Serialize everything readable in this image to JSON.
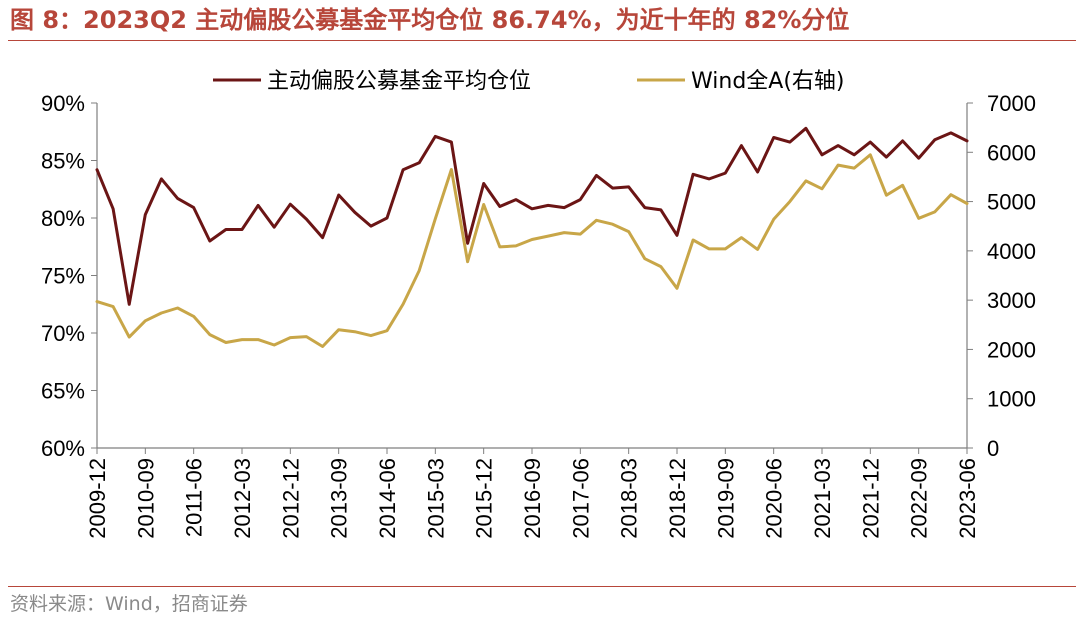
{
  "figure": {
    "title": "图 8：2023Q2 主动偏股公募基金平均仓位 86.74%，为近十年的 82%分位",
    "source": "资料来源：Wind，招商证券"
  },
  "colors": {
    "accent": "#b7463a",
    "series_position": "#6b1515",
    "series_index": "#c8a648",
    "axis": "#7f7f7f"
  },
  "chart_data": {
    "type": "line",
    "legend_placement": "top",
    "grid": false,
    "x": [
      "2009-12",
      "2010-03",
      "2010-06",
      "2010-09",
      "2010-12",
      "2011-03",
      "2011-06",
      "2011-09",
      "2011-12",
      "2012-03",
      "2012-06",
      "2012-09",
      "2012-12",
      "2013-03",
      "2013-06",
      "2013-09",
      "2013-12",
      "2014-03",
      "2014-06",
      "2014-09",
      "2014-12",
      "2015-03",
      "2015-06",
      "2015-09",
      "2015-12",
      "2016-03",
      "2016-06",
      "2016-09",
      "2016-12",
      "2017-03",
      "2017-06",
      "2017-09",
      "2017-12",
      "2018-03",
      "2018-06",
      "2018-09",
      "2018-12",
      "2019-03",
      "2019-06",
      "2019-09",
      "2019-12",
      "2020-03",
      "2020-06",
      "2020-09",
      "2020-12",
      "2021-03",
      "2021-06",
      "2021-09",
      "2021-12",
      "2022-03",
      "2022-06",
      "2022-09",
      "2022-12",
      "2023-03",
      "2023-06"
    ],
    "x_tick_labels": [
      "2009-12",
      "2010-09",
      "2011-06",
      "2012-03",
      "2012-12",
      "2013-09",
      "2014-06",
      "2015-03",
      "2015-12",
      "2016-09",
      "2017-06",
      "2018-03",
      "2018-12",
      "2019-09",
      "2020-06",
      "2021-03",
      "2021-12",
      "2022-09",
      "2023-06"
    ],
    "y_left": {
      "ylim": [
        60,
        90
      ],
      "ticks": [
        "90%",
        "85%",
        "80%",
        "75%",
        "70%",
        "65%",
        "60%"
      ]
    },
    "y_right": {
      "ylim": [
        0,
        7000
      ],
      "ticks": [
        "7000",
        "6000",
        "5000",
        "4000",
        "3000",
        "2000",
        "1000",
        "0"
      ]
    },
    "series": [
      {
        "name": "主动偏股公募基金平均仓位",
        "axis": "left",
        "values": [
          84.2,
          80.8,
          72.5,
          80.3,
          83.4,
          81.7,
          80.9,
          78.0,
          79.0,
          79.0,
          81.1,
          79.2,
          81.2,
          79.9,
          78.3,
          82.0,
          80.5,
          79.3,
          80.0,
          84.2,
          84.8,
          87.1,
          86.6,
          77.8,
          83.0,
          81.0,
          81.6,
          80.8,
          81.1,
          80.9,
          81.6,
          83.7,
          82.6,
          82.7,
          80.9,
          80.7,
          78.5,
          83.8,
          83.4,
          83.9,
          86.3,
          84.0,
          87.0,
          86.6,
          87.8,
          85.5,
          86.3,
          85.5,
          86.6,
          85.3,
          86.7,
          85.2,
          86.8,
          87.4,
          86.7
        ]
      },
      {
        "name": "Wind全A(右轴)",
        "axis": "right",
        "values": [
          2970,
          2870,
          2250,
          2580,
          2740,
          2840,
          2670,
          2300,
          2140,
          2200,
          2200,
          2090,
          2240,
          2260,
          2060,
          2400,
          2360,
          2280,
          2380,
          2920,
          3600,
          4650,
          5650,
          3780,
          4940,
          4080,
          4100,
          4230,
          4300,
          4370,
          4340,
          4620,
          4540,
          4390,
          3840,
          3680,
          3240,
          4220,
          4040,
          4040,
          4270,
          4030,
          4640,
          5000,
          5420,
          5260,
          5740,
          5680,
          5950,
          5130,
          5330,
          4660,
          4790,
          5140,
          4960
        ]
      }
    ]
  }
}
